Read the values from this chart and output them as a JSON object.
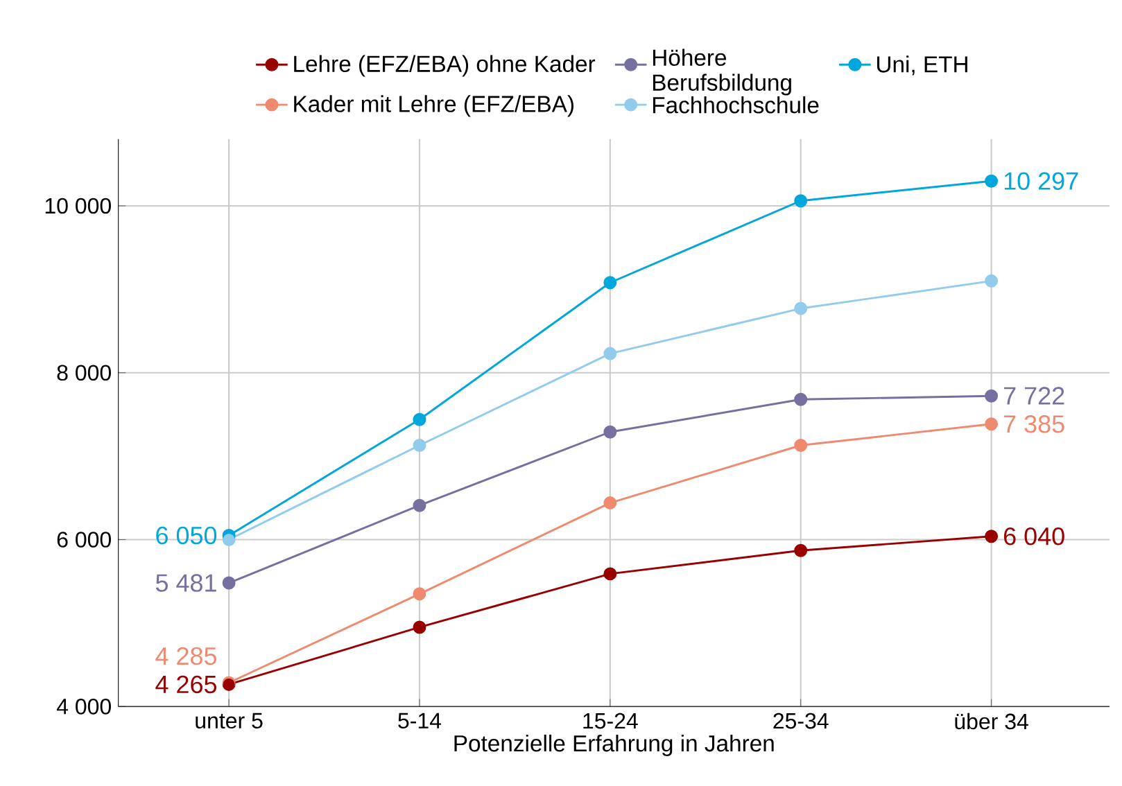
{
  "chart_data": {
    "type": "line",
    "xlabel": "Potenzielle Erfahrung in Jahren",
    "categories": [
      "unter 5",
      "5-14",
      "15-24",
      "25-34",
      "über 34"
    ],
    "ylim": [
      4000,
      10800
    ],
    "yticks": [
      {
        "value": 4000,
        "label": "4 000"
      },
      {
        "value": 6000,
        "label": "6 000"
      },
      {
        "value": 8000,
        "label": "8 000"
      },
      {
        "value": 10000,
        "label": "10 000"
      }
    ],
    "grid": true,
    "legend": "top",
    "marker": "circle",
    "line_style": "solid",
    "series": [
      {
        "name": "Lehre (EFZ/EBA) ohne Kader",
        "color": "#990000",
        "values": [
          4265,
          4950,
          5590,
          5870,
          6040
        ],
        "value_labels": [
          "4 265",
          null,
          null,
          null,
          "6 040"
        ]
      },
      {
        "name": "Kader mit Lehre (EFZ/EBA)",
        "color": "#ef8a6f",
        "values": [
          4285,
          5350,
          6440,
          7130,
          7385
        ],
        "value_labels": [
          "4 285",
          null,
          null,
          null,
          "7 385"
        ]
      },
      {
        "name": "Höhere Berufsbildung",
        "color": "#7570a0",
        "values": [
          5481,
          6410,
          7290,
          7680,
          7722
        ],
        "value_labels": [
          "5 481",
          null,
          null,
          null,
          "7 722"
        ]
      },
      {
        "name": "Fachhochschule",
        "color": "#92cbec",
        "values": [
          6000,
          7130,
          8230,
          8770,
          9100
        ]
      },
      {
        "name": "Uni, ETH",
        "color": "#00a6dc",
        "values": [
          6050,
          7440,
          9080,
          10060,
          10297
        ],
        "value_labels": [
          "6 050",
          null,
          null,
          null,
          "10 297"
        ]
      }
    ]
  }
}
